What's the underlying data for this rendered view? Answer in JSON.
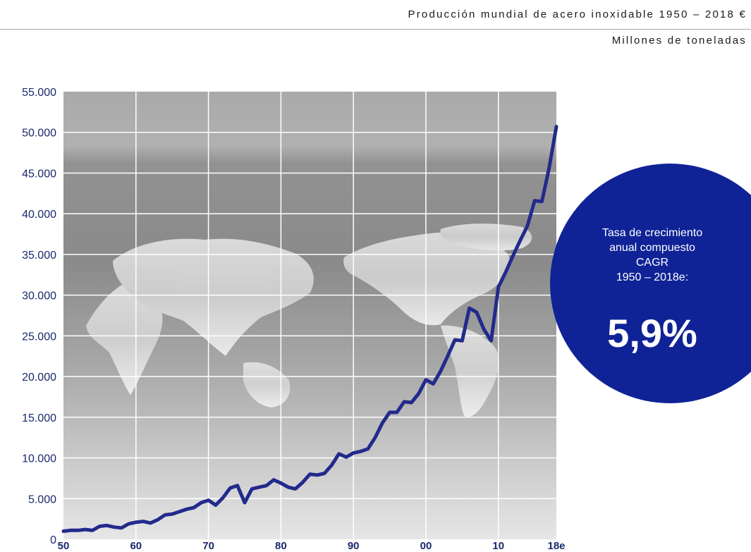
{
  "header": {
    "title": "Producción mundial de acero inoxidable 1950 – 2018 €",
    "unit": "Millones de toneladas"
  },
  "cagr_badge": {
    "lines": [
      "Tasa de crecimiento",
      "anual compuesto",
      "CAGR",
      "1950 – 2018e:"
    ],
    "value": "5,9%",
    "color": "#0f2396"
  },
  "chart_data": {
    "type": "line",
    "title": "Producción mundial de acero inoxidable 1950 – 2018 €",
    "ylabel": "Millones de toneladas",
    "xlabel": "",
    "xlim": [
      1950,
      2018
    ],
    "ylim": [
      0,
      55000
    ],
    "y_ticks": [
      0,
      5000,
      10000,
      15000,
      20000,
      25000,
      30000,
      35000,
      40000,
      45000,
      50000,
      55000
    ],
    "y_tick_labels": [
      "0",
      "5.000",
      "10.000",
      "15.000",
      "20.000",
      "25.000",
      "30.000",
      "35.000",
      "40.000",
      "45.000",
      "50.000",
      "55.000"
    ],
    "x_ticks": [
      1950,
      1960,
      1970,
      1980,
      1990,
      2000,
      2010,
      2018
    ],
    "x_tick_labels": [
      "50",
      "60",
      "70",
      "80",
      "90",
      "00",
      "10",
      "18e"
    ],
    "grid": true,
    "line_color": "#232a8c",
    "series": [
      {
        "x": [
          1950,
          1951,
          1952,
          1953,
          1954,
          1955,
          1956,
          1957,
          1958,
          1959,
          1960,
          1961,
          1962,
          1963,
          1964,
          1965,
          1966,
          1967,
          1968,
          1969,
          1970,
          1971,
          1972,
          1973,
          1974,
          1975,
          1976,
          1977,
          1978,
          1979,
          1980,
          1981,
          1982,
          1983,
          1984,
          1985,
          1986,
          1987,
          1988,
          1989,
          1990,
          1991,
          1992,
          1993,
          1994,
          1995,
          1996,
          1997,
          1998,
          1999,
          2000,
          2001,
          2002,
          2003,
          2004,
          2005,
          2006,
          2007,
          2008,
          2009,
          2010,
          2011,
          2012,
          2013,
          2014,
          2015,
          2016,
          2017,
          2018
        ],
        "values": [
          1000,
          1100,
          1100,
          1200,
          1100,
          1600,
          1700,
          1500,
          1400,
          1900,
          2100,
          2200,
          2000,
          2400,
          3000,
          3100,
          3400,
          3700,
          3900,
          4500,
          4800,
          4200,
          5100,
          6300,
          6600,
          4500,
          6200,
          6400,
          6600,
          7300,
          6900,
          6400,
          6200,
          7000,
          8000,
          7900,
          8100,
          9100,
          10500,
          10100,
          10600,
          10800,
          11100,
          12500,
          14300,
          15600,
          15600,
          16900,
          16800,
          17900,
          19600,
          19100,
          20600,
          22500,
          24500,
          24400,
          28400,
          27900,
          25800,
          24400,
          31000,
          32800,
          34800,
          36700,
          38500,
          41600,
          41500,
          45600,
          50700
        ]
      }
    ]
  }
}
